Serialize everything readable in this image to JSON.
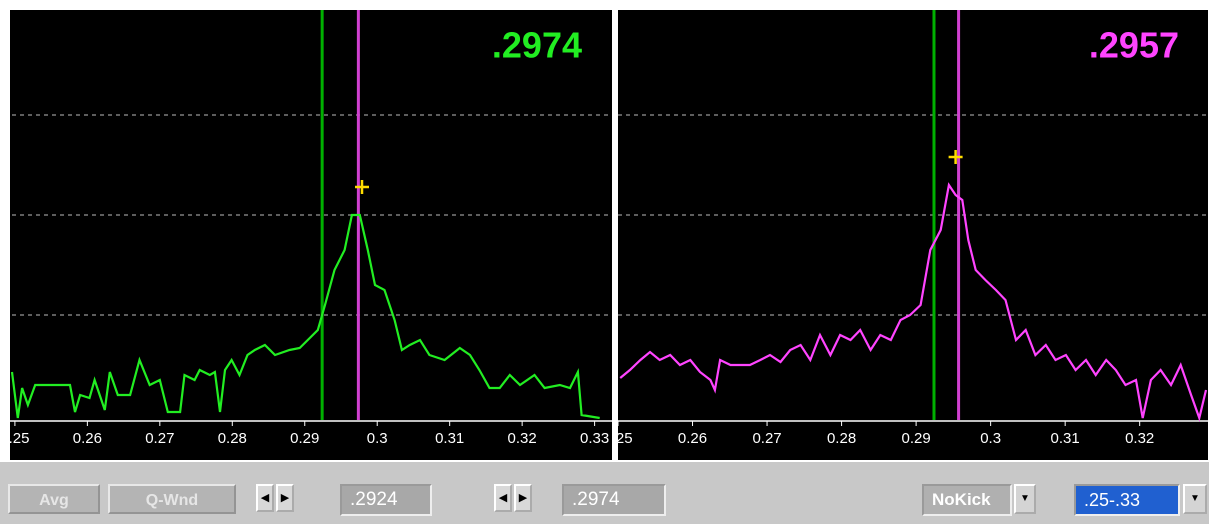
{
  "chart_data": [
    {
      "type": "line",
      "readout": ".2974",
      "readout_color": "#22ee22",
      "color": "#22ee22",
      "xlim": [
        0.2496,
        0.3324
      ],
      "ylim": [
        -0.05,
        4.03
      ],
      "xticks": [
        0.25,
        0.26,
        0.27,
        0.28,
        0.29,
        0.3,
        0.31,
        0.32,
        0.33
      ],
      "yticks": [
        1,
        2,
        3
      ],
      "grid": true,
      "cursors": [
        {
          "x": 0.2924,
          "color": "#00b000"
        },
        {
          "x": 0.2974,
          "color": "#d040d0"
        }
      ],
      "peak": {
        "x": 0.2979,
        "y": 2.28,
        "color": "#ffdd00"
      },
      "x": [
        0.2496,
        0.2504,
        0.251,
        0.2518,
        0.2528,
        0.2576,
        0.2583,
        0.259,
        0.2603,
        0.261,
        0.2624,
        0.2631,
        0.2642,
        0.2659,
        0.2672,
        0.2686,
        0.27,
        0.2711,
        0.2728,
        0.2734,
        0.2748,
        0.2755,
        0.2769,
        0.2776,
        0.2783,
        0.279,
        0.2799,
        0.281,
        0.2821,
        0.2831,
        0.2845,
        0.2859,
        0.2879,
        0.2893,
        0.2907,
        0.2918,
        0.2928,
        0.2941,
        0.2955,
        0.2965,
        0.2976,
        0.2987,
        0.2997,
        0.301,
        0.3024,
        0.3034,
        0.3045,
        0.3059,
        0.3072,
        0.3093,
        0.3114,
        0.3128,
        0.3141,
        0.3155,
        0.3169,
        0.3183,
        0.3197,
        0.3217,
        0.3231,
        0.3252,
        0.3266,
        0.3277,
        0.3282,
        0.3307
      ],
      "values": [
        0.43,
        -0.03,
        0.27,
        0.1,
        0.3,
        0.3,
        0.03,
        0.2,
        0.17,
        0.35,
        0.05,
        0.43,
        0.2,
        0.2,
        0.55,
        0.3,
        0.35,
        0.03,
        0.03,
        0.4,
        0.35,
        0.45,
        0.4,
        0.43,
        0.03,
        0.45,
        0.55,
        0.4,
        0.6,
        0.65,
        0.7,
        0.6,
        0.65,
        0.67,
        0.77,
        0.85,
        1.1,
        1.45,
        1.65,
        2.0,
        2.0,
        1.65,
        1.3,
        1.25,
        0.95,
        0.65,
        0.7,
        0.75,
        0.6,
        0.55,
        0.67,
        0.6,
        0.45,
        0.27,
        0.27,
        0.4,
        0.3,
        0.4,
        0.27,
        0.3,
        0.27,
        0.43,
        0.0,
        -0.03
      ]
    },
    {
      "type": "line",
      "readout": ".2957",
      "readout_color": "#ff44ff",
      "color": "#ff44ff",
      "xlim": [
        0.25,
        0.3293
      ],
      "ylim": [
        -0.05,
        4.03
      ],
      "xticks": [
        0.25,
        0.26,
        0.27,
        0.28,
        0.29,
        0.3,
        0.31,
        0.32
      ],
      "yticks": [
        1,
        2,
        3
      ],
      "grid": true,
      "cursors": [
        {
          "x": 0.2924,
          "color": "#00b000"
        },
        {
          "x": 0.2957,
          "color": "#d040d0"
        }
      ],
      "peak": {
        "x": 0.2953,
        "y": 2.58,
        "color": "#ffdd00"
      },
      "x": [
        0.2503,
        0.2516,
        0.253,
        0.2543,
        0.2556,
        0.257,
        0.2583,
        0.2597,
        0.261,
        0.2624,
        0.263,
        0.2637,
        0.2651,
        0.2664,
        0.2677,
        0.2691,
        0.2704,
        0.2718,
        0.2731,
        0.2745,
        0.2758,
        0.2771,
        0.2785,
        0.2798,
        0.2812,
        0.2825,
        0.2839,
        0.2852,
        0.2866,
        0.2879,
        0.2892,
        0.2906,
        0.2919,
        0.2933,
        0.2944,
        0.2953,
        0.2962,
        0.297,
        0.298,
        0.2993,
        0.3007,
        0.302,
        0.3034,
        0.3047,
        0.306,
        0.3074,
        0.3087,
        0.3101,
        0.3114,
        0.3128,
        0.3141,
        0.3155,
        0.3168,
        0.3181,
        0.3195,
        0.3204,
        0.3215,
        0.3228,
        0.3242,
        0.3255,
        0.3269,
        0.328,
        0.3289
      ],
      "values": [
        0.37,
        0.45,
        0.55,
        0.63,
        0.55,
        0.6,
        0.5,
        0.55,
        0.43,
        0.35,
        0.25,
        0.55,
        0.5,
        0.5,
        0.5,
        0.55,
        0.6,
        0.53,
        0.65,
        0.7,
        0.55,
        0.8,
        0.6,
        0.8,
        0.75,
        0.85,
        0.65,
        0.8,
        0.75,
        0.95,
        1.0,
        1.1,
        1.65,
        1.85,
        2.3,
        2.2,
        2.15,
        1.75,
        1.45,
        1.35,
        1.25,
        1.15,
        0.75,
        0.85,
        0.6,
        0.7,
        0.55,
        0.6,
        0.45,
        0.55,
        0.4,
        0.55,
        0.45,
        0.3,
        0.35,
        -0.03,
        0.35,
        0.45,
        0.3,
        0.5,
        0.2,
        -0.03,
        0.25
      ]
    }
  ],
  "toolbar": {
    "avg": "Avg",
    "qwnd": "Q-Wnd",
    "field1": ".2924",
    "field2": ".2974",
    "kick": "NoKick",
    "range": ".25-.33"
  }
}
